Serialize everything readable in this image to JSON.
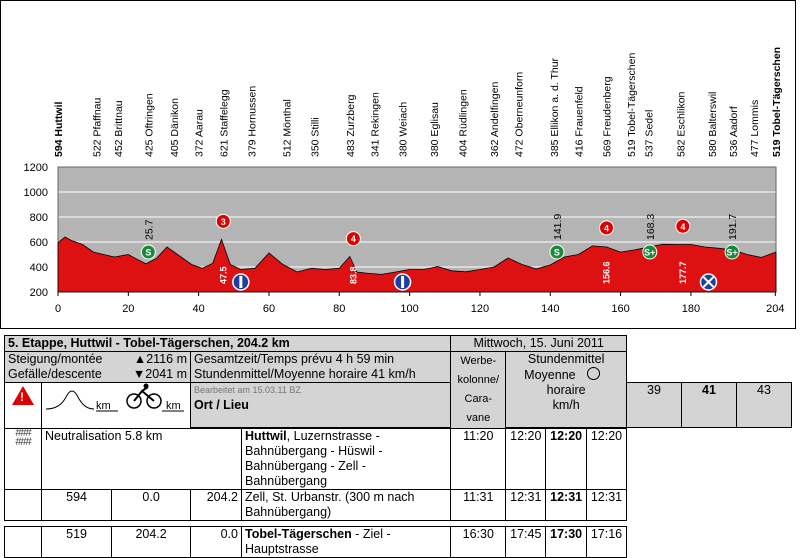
{
  "chart_data": {
    "type": "area",
    "title": "",
    "xlabel": "",
    "ylabel": "",
    "xlim": [
      0,
      204.2
    ],
    "ylim": [
      200,
      1200
    ],
    "x_ticks": [
      "0",
      "20",
      "40",
      "60",
      "80",
      "100",
      "120",
      "140",
      "160",
      "180",
      "204"
    ],
    "y_ticks": [
      "200",
      "400",
      "600",
      "800",
      "1000",
      "1200"
    ],
    "grid": true,
    "fill_color": "#dd1111",
    "background_color": "#b4b4b4",
    "profile": {
      "x": [
        0,
        2,
        4,
        7,
        10,
        13,
        16,
        20,
        22,
        25,
        28,
        31,
        34,
        38,
        41,
        44,
        46.5,
        49,
        52,
        56,
        60,
        64,
        68,
        72,
        76,
        80,
        83,
        85,
        88,
        92,
        96,
        100,
        104,
        108,
        112,
        116,
        120,
        124,
        128,
        132,
        136,
        140,
        144,
        148,
        152,
        156,
        160,
        164,
        168,
        172,
        176,
        180,
        184,
        188,
        192,
        196,
        200,
        204.2
      ],
      "y": [
        594,
        640,
        610,
        580,
        520,
        500,
        480,
        500,
        470,
        425,
        470,
        560,
        500,
        420,
        390,
        430,
        621,
        420,
        380,
        390,
        512,
        420,
        360,
        390,
        380,
        390,
        483,
        360,
        350,
        341,
        360,
        380,
        380,
        404,
        370,
        362,
        380,
        400,
        472,
        420,
        385,
        416,
        480,
        500,
        569,
        560,
        519,
        537,
        560,
        582,
        580,
        580,
        560,
        550,
        536,
        500,
        477,
        519
      ]
    },
    "towns": [
      {
        "km": 0,
        "alt": "594",
        "name": "Huttwil",
        "bold": true
      },
      {
        "km": 11,
        "alt": "522",
        "name": "Pfaffnau",
        "bold": false
      },
      {
        "km": 17,
        "alt": "452",
        "name": "Brittnau",
        "bold": false
      },
      {
        "km": 25.7,
        "alt": "425",
        "name": "Oftringen",
        "bold": false
      },
      {
        "km": 33,
        "alt": "405",
        "name": "Dänikon",
        "bold": false
      },
      {
        "km": 40,
        "alt": "372",
        "name": "Aarau",
        "bold": false
      },
      {
        "km": 47,
        "alt": "621",
        "name": "Staffelegg",
        "bold": false
      },
      {
        "km": 55,
        "alt": "379",
        "name": "Hornussen",
        "bold": false
      },
      {
        "km": 65,
        "alt": "512",
        "name": "Mönthal",
        "bold": false
      },
      {
        "km": 73,
        "alt": "350",
        "name": "Stilli",
        "bold": false
      },
      {
        "km": 83,
        "alt": "483",
        "name": "Zurzberg",
        "bold": false
      },
      {
        "km": 90,
        "alt": "341",
        "name": "Rekingen",
        "bold": false
      },
      {
        "km": 98,
        "alt": "380",
        "name": "Weiach",
        "bold": false
      },
      {
        "km": 107,
        "alt": "380",
        "name": "Eglisau",
        "bold": false
      },
      {
        "km": 115,
        "alt": "404",
        "name": "Rüdlingen",
        "bold": false
      },
      {
        "km": 124,
        "alt": "362",
        "name": "Andelfingen",
        "bold": false
      },
      {
        "km": 131,
        "alt": "472",
        "name": "Oberneunforn",
        "bold": false
      },
      {
        "km": 141,
        "alt": "385",
        "name": "Ellikon a. d. Thur",
        "bold": false
      },
      {
        "km": 148,
        "alt": "416",
        "name": "Frauenfeld",
        "bold": false
      },
      {
        "km": 156,
        "alt": "569",
        "name": "Freudenberg",
        "bold": false
      },
      {
        "km": 163,
        "alt": "519",
        "name": "Tobel-Tägerschen",
        "bold": false
      },
      {
        "km": 168,
        "alt": "537",
        "name": "Sedel",
        "bold": false
      },
      {
        "km": 177,
        "alt": "582",
        "name": "Eschlikon",
        "bold": false
      },
      {
        "km": 186,
        "alt": "580",
        "name": "Balterswil",
        "bold": false
      },
      {
        "km": 192,
        "alt": "536",
        "name": "Aadorf",
        "bold": false
      },
      {
        "km": 198,
        "alt": "477",
        "name": "Lommis",
        "bold": false
      },
      {
        "km": 204.2,
        "alt": "519",
        "name": "Tobel-Tägerschen",
        "bold": true
      }
    ],
    "climbs": [
      {
        "km": 47,
        "cat": "3",
        "label": "47.5",
        "peak": 621
      },
      {
        "km": 84,
        "cat": "4",
        "label": "83.8",
        "peak": 483
      },
      {
        "km": 156,
        "cat": "4",
        "label": "156.6",
        "peak": 569
      },
      {
        "km": 177.7,
        "cat": "4",
        "label": "177.7",
        "peak": 582
      }
    ],
    "sprints": [
      {
        "km": 25.7,
        "symbol": "S",
        "label": "25.7"
      },
      {
        "km": 141.9,
        "symbol": "S",
        "label": "141.9"
      },
      {
        "km": 168.3,
        "symbol": "S+",
        "label": "168.3"
      },
      {
        "km": 191.7,
        "symbol": "S+",
        "label": "191.7"
      }
    ],
    "feed_zones": [
      {
        "km": 52
      },
      {
        "km": 98
      }
    ],
    "crossings": [
      {
        "km": 185
      }
    ]
  },
  "table": {
    "stage_title": "5. Etappe,  Huttwil - Tobel-Tägerschen, 204.2 km",
    "date": "Mittwoch, 15. Juni 2011",
    "climb_label": "Steigung/montée",
    "climb_value": "▲2116 m",
    "descent_label": "Gefälle/descente",
    "descent_value": "▼2041 m",
    "total_time": "Gesamtzeit/Temps prévu 4 h 59 min",
    "avg_speed": "Stundenmittel/Moyenne horaire 41 km/h",
    "werbe": [
      "Werbe-",
      "kolonne/",
      "Cara-",
      "vane"
    ],
    "speed_header": "Stundenmittel",
    "moyenne": "Moyenne",
    "horaire": "horaire",
    "kmh": "km/h",
    "speeds": [
      "39",
      "41",
      "43"
    ],
    "edited": "Bearbeitet am 15.03.11 BZ",
    "ort": "Ort / Lieu",
    "km_left": "km",
    "km_right": "km",
    "warning": "!",
    "rows": [
      {
        "icon": "####",
        "alt": "",
        "km": "",
        "rest": "",
        "neutral": "Neutralisation 5.8 km",
        "place_bold": "Huttwil",
        "place": ", Luzernstrasse - Bahnübergang - Hüswil - Bahnübergang - Zell - Bahnübergang",
        "werbe": "11:20",
        "t1": "12:20",
        "t2": "12:20",
        "t3": "12:20"
      },
      {
        "icon": "",
        "alt": "594",
        "km": "0.0",
        "rest": "204.2",
        "neutral": "",
        "place_bold": "",
        "place": "Zell, St. Urbanstr. (300 m nach Bahnübergang)",
        "werbe": "11:31",
        "t1": "12:31",
        "t2": "12:31",
        "t3": "12:31"
      },
      {
        "icon": "",
        "alt": "519",
        "km": "204.2",
        "rest": "0.0",
        "neutral": "",
        "place_bold": "Tobel-Tägerschen",
        "place": " - Ziel - Hauptstrasse",
        "werbe": "16:30",
        "t1": "17:45",
        "t2": "17:30",
        "t3": "17:16"
      }
    ]
  }
}
